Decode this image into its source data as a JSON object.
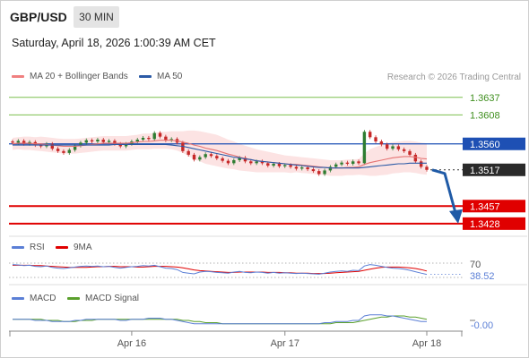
{
  "header": {
    "symbol": "GBP/USD",
    "timeframe": "30 MIN",
    "datetime": "Saturday, April 18, 2026 1:00:39 AM CET"
  },
  "legend": {
    "ma20_label": "MA 20 + Bollinger Bands",
    "ma50_label": "MA 50",
    "rsi_label": "RSI",
    "rsi_ma_label": "9MA",
    "macd_label": "MACD",
    "macd_signal_label": "MACD Signal",
    "credit": "Research © 2026 Trading Central"
  },
  "colors": {
    "candle_up": "#2e7d32",
    "candle_down": "#c62828",
    "ma20": "#e57373",
    "ma50": "#2b5aa6",
    "band_fill": "#fbd9d9",
    "resistance": "#7cbf4e",
    "support": "#e00000",
    "pivot": "#1e50b4",
    "rsi": "#5b7fd6",
    "rsi_ma": "#e00000",
    "macd": "#5b7fd6",
    "macd_signal": "#5aa02c",
    "arrow": "#1f5aa6"
  },
  "chart_data": [
    {
      "type": "candlestick",
      "panel": "price",
      "title": "GBP/USD",
      "xlabel": "",
      "ylabel": "",
      "x_tick_labels": [
        "Apr 16",
        "Apr 17",
        "Apr 18"
      ],
      "ylim": [
        1.341,
        1.365
      ],
      "price_levels": [
        {
          "value": 1.3637,
          "label": "1.3637",
          "kind": "resistance"
        },
        {
          "value": 1.3608,
          "label": "1.3608",
          "kind": "resistance"
        },
        {
          "value": 1.356,
          "label": "1.3560",
          "kind": "pivot"
        },
        {
          "value": 1.3517,
          "label": "1.3517",
          "kind": "last"
        },
        {
          "value": 1.3457,
          "label": "1.3457",
          "kind": "support"
        },
        {
          "value": 1.3428,
          "label": "1.3428",
          "kind": "support"
        }
      ],
      "close": [
        1.3562,
        1.3565,
        1.356,
        1.3563,
        1.3558,
        1.3556,
        1.356,
        1.3552,
        1.3548,
        1.3545,
        1.355,
        1.3557,
        1.3562,
        1.3566,
        1.3564,
        1.3567,
        1.3563,
        1.3565,
        1.356,
        1.3556,
        1.356,
        1.3564,
        1.3567,
        1.357,
        1.3568,
        1.3578,
        1.3572,
        1.3566,
        1.3568,
        1.3562,
        1.3548,
        1.3542,
        1.3534,
        1.3538,
        1.3543,
        1.354,
        1.3536,
        1.3532,
        1.3528,
        1.3533,
        1.3537,
        1.3531,
        1.3528,
        1.3531,
        1.3528,
        1.3524,
        1.3527,
        1.3523,
        1.3525,
        1.3522,
        1.3519,
        1.3521,
        1.3518,
        1.3515,
        1.351,
        1.3516,
        1.3522,
        1.3526,
        1.3529,
        1.3527,
        1.3531,
        1.3528,
        1.358,
        1.3571,
        1.3564,
        1.3559,
        1.3552,
        1.3556,
        1.3551,
        1.3548,
        1.3542,
        1.3531,
        1.3522,
        1.3517
      ],
      "ma20": [
        1.356,
        1.3561,
        1.3561,
        1.3561,
        1.356,
        1.356,
        1.3559,
        1.3558,
        1.3557,
        1.3556,
        1.3556,
        1.3556,
        1.3557,
        1.3558,
        1.3559,
        1.356,
        1.3561,
        1.3561,
        1.3561,
        1.3561,
        1.3561,
        1.3562,
        1.3563,
        1.3564,
        1.3564,
        1.3565,
        1.3566,
        1.3566,
        1.3566,
        1.3565,
        1.3563,
        1.3561,
        1.3558,
        1.3556,
        1.3553,
        1.3551,
        1.3549,
        1.3546,
        1.3543,
        1.3541,
        1.3538,
        1.3536,
        1.3534,
        1.3532,
        1.3531,
        1.353,
        1.3529,
        1.3528,
        1.3527,
        1.3526,
        1.3526,
        1.3525,
        1.3524,
        1.3523,
        1.3522,
        1.3521,
        1.352,
        1.352,
        1.352,
        1.3521,
        1.3521,
        1.3522,
        1.3526,
        1.3529,
        1.3531,
        1.3533,
        1.3535,
        1.3537,
        1.3538,
        1.3539,
        1.3539,
        1.3538,
        1.3536,
        1.3535
      ],
      "ma50": [
        1.3558,
        1.3558,
        1.3558,
        1.3558,
        1.3558,
        1.3558,
        1.3558,
        1.3558,
        1.3558,
        1.3558,
        1.3558,
        1.3558,
        1.3558,
        1.3558,
        1.3558,
        1.3558,
        1.3558,
        1.3558,
        1.3559,
        1.3559,
        1.3559,
        1.3559,
        1.3559,
        1.3559,
        1.3559,
        1.3559,
        1.3559,
        1.3559,
        1.3558,
        1.3557,
        1.3556,
        1.3554,
        1.3552,
        1.355,
        1.3548,
        1.3546,
        1.3544,
        1.3542,
        1.354,
        1.3538,
        1.3537,
        1.3535,
        1.3534,
        1.3532,
        1.3531,
        1.353,
        1.3529,
        1.3528,
        1.3527,
        1.3526,
        1.3525,
        1.3524,
        1.3523,
        1.3522,
        1.3521,
        1.3521,
        1.352,
        1.352,
        1.352,
        1.352,
        1.352,
        1.352,
        1.3521,
        1.3522,
        1.3523,
        1.3524,
        1.3525,
        1.3526,
        1.3527,
        1.3527,
        1.3528,
        1.3528,
        1.3528,
        1.3528
      ],
      "bollinger_halfwidth": [
        0.001,
        0.001,
        0.0011,
        0.0011,
        0.0011,
        0.0012,
        0.0012,
        0.0012,
        0.0012,
        0.0012,
        0.0012,
        0.0012,
        0.0012,
        0.0012,
        0.0012,
        0.0012,
        0.0012,
        0.0012,
        0.0012,
        0.0012,
        0.0012,
        0.0012,
        0.0012,
        0.0013,
        0.0013,
        0.0013,
        0.0014,
        0.0014,
        0.0015,
        0.0016,
        0.0018,
        0.0021,
        0.0024,
        0.0025,
        0.0026,
        0.0026,
        0.0026,
        0.0025,
        0.0024,
        0.0023,
        0.0022,
        0.0021,
        0.002,
        0.0019,
        0.0018,
        0.0017,
        0.0016,
        0.0015,
        0.0014,
        0.0014,
        0.0013,
        0.0013,
        0.0013,
        0.0013,
        0.0013,
        0.0013,
        0.0013,
        0.0013,
        0.0013,
        0.0013,
        0.0013,
        0.0013,
        0.0018,
        0.0022,
        0.0024,
        0.0025,
        0.0026,
        0.0026,
        0.0026,
        0.0026,
        0.0026,
        0.0026,
        0.0026,
        0.0026
      ],
      "forecast": [
        1.3517,
        1.3428
      ]
    },
    {
      "type": "line",
      "panel": "rsi",
      "series_names": [
        "RSI",
        "9MA"
      ],
      "level_labels": [
        "70",
        "38.52"
      ],
      "ylim": [
        20,
        80
      ],
      "rsi": [
        66,
        65,
        63,
        64,
        61,
        60,
        62,
        58,
        56,
        55,
        57,
        59,
        61,
        62,
        61,
        62,
        60,
        61,
        58,
        56,
        58,
        60,
        61,
        63,
        62,
        64,
        60,
        56,
        55,
        52,
        44,
        42,
        40,
        45,
        47,
        46,
        44,
        43,
        42,
        45,
        47,
        44,
        43,
        45,
        44,
        42,
        44,
        42,
        43,
        42,
        41,
        42,
        41,
        40,
        39,
        42,
        45,
        47,
        48,
        47,
        50,
        49,
        62,
        66,
        64,
        61,
        58,
        56,
        55,
        53,
        50,
        46,
        42,
        38.52
      ],
      "rsi_ma": [
        64,
        64,
        64,
        64,
        63,
        63,
        62,
        61,
        60,
        59,
        58,
        58,
        58,
        58,
        59,
        60,
        60,
        61,
        61,
        60,
        60,
        60,
        59,
        59,
        60,
        61,
        61,
        61,
        60,
        59,
        57,
        54,
        51,
        49,
        48,
        47,
        46,
        45,
        44,
        44,
        45,
        45,
        45,
        45,
        45,
        44,
        44,
        44,
        43,
        43,
        42,
        42,
        42,
        41,
        41,
        41,
        42,
        43,
        44,
        45,
        46,
        47,
        50,
        53,
        56,
        58,
        59,
        59,
        59,
        58,
        57,
        55,
        52,
        48
      ]
    },
    {
      "type": "line",
      "panel": "macd",
      "series_names": [
        "MACD",
        "MACD Signal"
      ],
      "level_labels": [
        "-0.00"
      ],
      "ylim": [
        -0.0008,
        0.0008
      ],
      "macd": [
        0.0001,
        0.0001,
        0.0001,
        0.0001,
        0.0,
        0.0,
        0.0,
        -0.0001,
        -0.0001,
        -0.0001,
        -0.0001,
        0.0,
        0.0,
        0.0001,
        0.0001,
        0.0001,
        0.0001,
        0.0001,
        0.0001,
        0.0,
        0.0,
        0.0001,
        0.0001,
        0.0001,
        0.0002,
        0.0002,
        0.0002,
        0.0001,
        0.0001,
        0.0,
        -0.0001,
        -0.0002,
        -0.0003,
        -0.0003,
        -0.0003,
        -0.0003,
        -0.0003,
        -0.0003,
        -0.0003,
        -0.0003,
        -0.0003,
        -0.0003,
        -0.0003,
        -0.0003,
        -0.0003,
        -0.0003,
        -0.0003,
        -0.0003,
        -0.0003,
        -0.0003,
        -0.0003,
        -0.0003,
        -0.0003,
        -0.0003,
        -0.0003,
        -0.0002,
        -0.0002,
        -0.0001,
        -0.0001,
        -0.0001,
        0.0,
        0.0,
        0.0004,
        0.0005,
        0.0005,
        0.0005,
        0.0004,
        0.0004,
        0.0003,
        0.0002,
        0.0001,
        0.0,
        -0.0001,
        -0.0001
      ],
      "signal": [
        0.0001,
        0.0001,
        0.0001,
        0.0001,
        0.0001,
        0.0001,
        0.0,
        0.0,
        0.0,
        -0.0001,
        -0.0001,
        -0.0001,
        0.0,
        0.0,
        0.0,
        0.0001,
        0.0001,
        0.0001,
        0.0001,
        0.0001,
        0.0001,
        0.0001,
        0.0001,
        0.0001,
        0.0001,
        0.0001,
        0.0001,
        0.0001,
        0.0001,
        0.0001,
        0.0,
        0.0,
        -0.0001,
        -0.0001,
        -0.0002,
        -0.0002,
        -0.0002,
        -0.0003,
        -0.0003,
        -0.0003,
        -0.0003,
        -0.0003,
        -0.0003,
        -0.0003,
        -0.0003,
        -0.0003,
        -0.0003,
        -0.0003,
        -0.0003,
        -0.0003,
        -0.0003,
        -0.0003,
        -0.0003,
        -0.0003,
        -0.0003,
        -0.0003,
        -0.0003,
        -0.0002,
        -0.0002,
        -0.0002,
        -0.0002,
        -0.0001,
        0.0,
        0.0001,
        0.0002,
        0.0003,
        0.0003,
        0.0004,
        0.0004,
        0.0004,
        0.0003,
        0.0003,
        0.0002,
        0.0001
      ]
    }
  ]
}
